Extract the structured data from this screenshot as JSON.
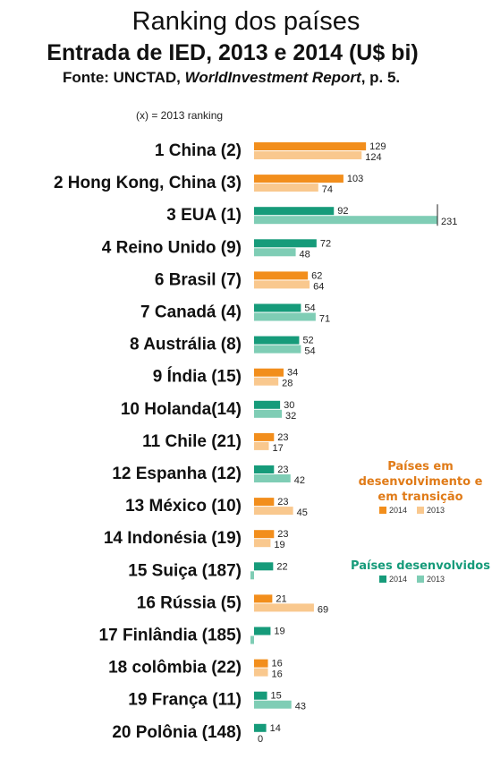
{
  "header": {
    "title": "Ranking dos países",
    "subtitle": "Entrada de IED, 2013 e 2014 (U$ bi)",
    "source_prefix": "Fonte: UNCTAD, ",
    "source_italic": "WorldInvestment Report",
    "source_suffix": ", p. 5.",
    "ranking_note": "(x) = 2013 ranking"
  },
  "colors": {
    "developing_2014": "#F28E1C",
    "developing_2013": "#F9C88E",
    "developed_2014": "#169B7A",
    "developed_2013": "#7FCDB5",
    "legend_developing_text": "#E07B18",
    "legend_developed_text": "#169B7A"
  },
  "legends": [
    {
      "title_lines": [
        "Países em",
        "desenvolvimento e",
        "em transição"
      ],
      "group": "developing",
      "items": [
        "2014",
        "2013"
      ]
    },
    {
      "title_lines": [
        "Países desenvolvidos"
      ],
      "group": "developed",
      "items": [
        "2014",
        "2013"
      ]
    }
  ],
  "chart_data": {
    "type": "bar",
    "orientation": "horizontal",
    "title": "Entrada de IED, 2013 e 2014 (U$ bi)",
    "series": [
      {
        "name": "2014"
      },
      {
        "name": "2013"
      }
    ],
    "xlim": [
      0,
      231
    ],
    "categories": [
      {
        "label": "1 China (2)",
        "group": "developing",
        "v2014": 129,
        "v2013": 124,
        "label2014": "129",
        "label2013": "124"
      },
      {
        "label": "2 Hong Kong, China (3)",
        "group": "developing",
        "v2014": 103,
        "v2013": 74,
        "label2014": "103",
        "label2013": "74"
      },
      {
        "label": "3 EUA (1)",
        "group": "developed",
        "v2014": 92,
        "v2013": 231,
        "label2014": "92",
        "label2013": "231",
        "clipped2013": true
      },
      {
        "label": "4 Reino Unido (9)",
        "group": "developed",
        "v2014": 72,
        "v2013": 48,
        "label2014": "72",
        "label2013": "48"
      },
      {
        "label": "6 Brasil (7)",
        "group": "developing",
        "v2014": 62,
        "v2013": 64,
        "label2014": "62",
        "label2013": "64"
      },
      {
        "label": "7 Canadá (4)",
        "group": "developed",
        "v2014": 54,
        "v2013": 71,
        "label2014": "54",
        "label2013": "71"
      },
      {
        "label": "8  Austrália (8)",
        "group": "developed",
        "v2014": 52,
        "v2013": 54,
        "label2014": "52",
        "label2013": "54"
      },
      {
        "label": "9 Índia (15)",
        "group": "developing",
        "v2014": 34,
        "v2013": 28,
        "label2014": "34",
        "label2013": "28"
      },
      {
        "label": "10 Holanda(14)",
        "group": "developed",
        "v2014": 30,
        "v2013": 32,
        "label2014": "30",
        "label2013": "32"
      },
      {
        "label": "11 Chile (21)",
        "group": "developing",
        "v2014": 23,
        "v2013": 17,
        "label2014": "23",
        "label2013": "17"
      },
      {
        "label": "12 Espanha (12)",
        "group": "developed",
        "v2014": 23,
        "v2013": 42,
        "label2014": "23",
        "label2013": "42"
      },
      {
        "label": "13 México (10)",
        "group": "developing",
        "v2014": 23,
        "v2013": 45,
        "label2014": "23",
        "label2013": "45"
      },
      {
        "label": "14 Indonésia (19)",
        "group": "developing",
        "v2014": 23,
        "v2013": 19,
        "label2014": "23",
        "label2013": "19"
      },
      {
        "label": "15 Suiça (187)",
        "group": "developed",
        "v2014": 22,
        "v2013": -1,
        "label2014": "22",
        "label2013": ""
      },
      {
        "label": "16 Rússia (5)",
        "group": "developing",
        "v2014": 21,
        "v2013": 69,
        "label2014": "21",
        "label2013": "69"
      },
      {
        "label": "17 Finlândia (185)",
        "group": "developed",
        "v2014": 19,
        "v2013": -1,
        "label2014": "19",
        "label2013": ""
      },
      {
        "label": "18 colômbia (22)",
        "group": "developing",
        "v2014": 16,
        "v2013": 16,
        "label2014": "16",
        "label2013": "16"
      },
      {
        "label": "19 França (11)",
        "group": "developed",
        "v2014": 15,
        "v2013": 43,
        "label2014": "15",
        "label2013": "43"
      },
      {
        "label": "20 Polônia (148)",
        "group": "developed",
        "v2014": 14,
        "v2013": 0,
        "label2014": "14",
        "label2013": "0"
      }
    ]
  }
}
